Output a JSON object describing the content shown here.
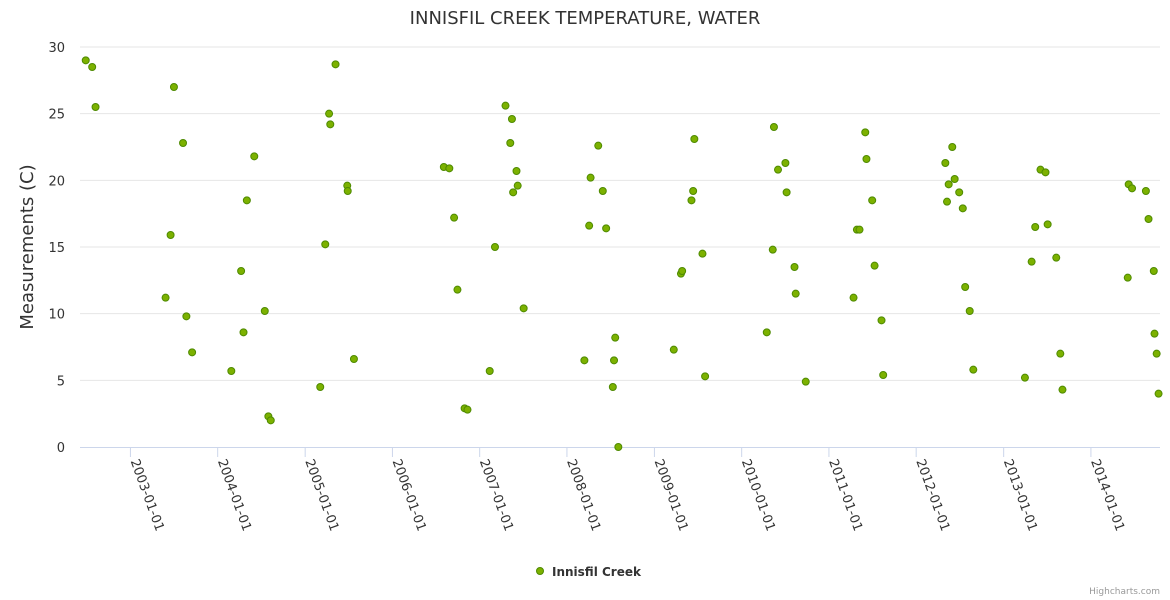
{
  "chart_data": {
    "type": "scatter",
    "title": "INNISFIL CREEK TEMPERATURE, WATER",
    "ylabel": "Measurements (C)",
    "xlabel": "",
    "ylim": [
      0,
      30
    ],
    "yticks": [
      "0",
      "5",
      "10",
      "15",
      "20",
      "25",
      "30"
    ],
    "x_axis": "date",
    "xlim": [
      "2002-06-04",
      "2014-10-17"
    ],
    "xticks": [
      "2003-01-01",
      "2004-01-01",
      "2005-01-01",
      "2006-01-01",
      "2007-01-01",
      "2008-01-01",
      "2009-01-01",
      "2010-01-01",
      "2011-01-01",
      "2012-01-01",
      "2013-01-01",
      "2014-01-01"
    ],
    "grid": "horizontal",
    "legend": "bottom-center",
    "series": [
      {
        "name": "Innisfil Creek",
        "color": "#7cb100",
        "stroke": "#4e8a00",
        "points": [
          [
            "2002-06-28",
            29.0
          ],
          [
            "2002-07-25",
            28.5
          ],
          [
            "2002-08-08",
            25.5
          ],
          [
            "2003-05-28",
            11.2
          ],
          [
            "2003-06-18",
            15.9
          ],
          [
            "2003-07-02",
            27.0
          ],
          [
            "2003-08-09",
            22.8
          ],
          [
            "2003-08-23",
            9.8
          ],
          [
            "2003-09-16",
            7.1
          ],
          [
            "2004-02-27",
            5.7
          ],
          [
            "2004-04-08",
            13.2
          ],
          [
            "2004-04-18",
            8.6
          ],
          [
            "2004-05-02",
            18.5
          ],
          [
            "2004-06-02",
            21.8
          ],
          [
            "2004-07-16",
            10.2
          ],
          [
            "2004-07-31",
            2.3
          ],
          [
            "2004-08-10",
            2.0
          ],
          [
            "2005-03-05",
            4.5
          ],
          [
            "2005-03-26",
            15.2
          ],
          [
            "2005-04-11",
            25.0
          ],
          [
            "2005-04-16",
            24.2
          ],
          [
            "2005-05-08",
            28.7
          ],
          [
            "2005-06-26",
            19.6
          ],
          [
            "2005-06-28",
            19.2
          ],
          [
            "2005-07-24",
            6.6
          ],
          [
            "2006-08-04",
            21.0
          ],
          [
            "2006-08-27",
            20.9
          ],
          [
            "2006-09-16",
            17.2
          ],
          [
            "2006-09-30",
            11.8
          ],
          [
            "2006-10-30",
            2.9
          ],
          [
            "2006-11-11",
            2.8
          ],
          [
            "2007-02-12",
            5.7
          ],
          [
            "2007-03-06",
            15.0
          ],
          [
            "2007-04-19",
            25.6
          ],
          [
            "2007-05-09",
            22.8
          ],
          [
            "2007-05-16",
            24.6
          ],
          [
            "2007-05-21",
            19.1
          ],
          [
            "2007-06-04",
            20.7
          ],
          [
            "2007-06-09",
            19.6
          ],
          [
            "2007-07-04",
            10.4
          ],
          [
            "2008-03-14",
            6.5
          ],
          [
            "2008-04-03",
            16.6
          ],
          [
            "2008-04-09",
            20.2
          ],
          [
            "2008-05-11",
            22.6
          ],
          [
            "2008-05-30",
            19.2
          ],
          [
            "2008-06-13",
            16.4
          ],
          [
            "2008-07-11",
            4.5
          ],
          [
            "2008-07-16",
            6.5
          ],
          [
            "2008-07-21",
            8.2
          ],
          [
            "2008-08-03",
            0.0
          ],
          [
            "2009-03-23",
            7.3
          ],
          [
            "2009-04-22",
            13.0
          ],
          [
            "2009-04-27",
            13.2
          ],
          [
            "2009-06-05",
            18.5
          ],
          [
            "2009-06-12",
            19.2
          ],
          [
            "2009-06-17",
            23.1
          ],
          [
            "2009-07-21",
            14.5
          ],
          [
            "2009-08-01",
            5.3
          ],
          [
            "2010-04-16",
            8.6
          ],
          [
            "2010-05-11",
            14.8
          ],
          [
            "2010-05-16",
            24.0
          ],
          [
            "2010-06-02",
            20.8
          ],
          [
            "2010-07-03",
            21.3
          ],
          [
            "2010-07-08",
            19.1
          ],
          [
            "2010-08-10",
            13.5
          ],
          [
            "2010-08-15",
            11.5
          ],
          [
            "2010-09-26",
            4.9
          ],
          [
            "2011-04-14",
            11.2
          ],
          [
            "2011-04-28",
            16.3
          ],
          [
            "2011-05-09",
            16.3
          ],
          [
            "2011-06-02",
            23.6
          ],
          [
            "2011-06-07",
            21.6
          ],
          [
            "2011-07-01",
            18.5
          ],
          [
            "2011-07-11",
            13.6
          ],
          [
            "2011-08-09",
            9.5
          ],
          [
            "2011-08-16",
            5.4
          ],
          [
            "2012-05-02",
            21.3
          ],
          [
            "2012-05-09",
            18.4
          ],
          [
            "2012-05-16",
            19.7
          ],
          [
            "2012-05-31",
            22.5
          ],
          [
            "2012-06-10",
            20.1
          ],
          [
            "2012-06-29",
            19.1
          ],
          [
            "2012-07-14",
            17.9
          ],
          [
            "2012-07-24",
            12.0
          ],
          [
            "2012-08-12",
            10.2
          ],
          [
            "2012-08-27",
            5.8
          ],
          [
            "2013-03-31",
            5.2
          ],
          [
            "2013-04-28",
            13.9
          ],
          [
            "2013-05-13",
            16.5
          ],
          [
            "2013-06-04",
            20.8
          ],
          [
            "2013-06-25",
            20.6
          ],
          [
            "2013-07-04",
            16.7
          ],
          [
            "2013-08-09",
            14.2
          ],
          [
            "2013-08-26",
            7.0
          ],
          [
            "2013-09-04",
            4.3
          ],
          [
            "2014-06-04",
            12.7
          ],
          [
            "2014-06-08",
            19.7
          ],
          [
            "2014-06-22",
            19.4
          ],
          [
            "2014-08-19",
            19.2
          ],
          [
            "2014-08-30",
            17.1
          ],
          [
            "2014-09-21",
            13.2
          ],
          [
            "2014-09-24",
            8.5
          ],
          [
            "2014-10-03",
            7.0
          ],
          [
            "2014-10-11",
            4.0
          ]
        ]
      }
    ]
  },
  "credits": "Highcharts.com"
}
